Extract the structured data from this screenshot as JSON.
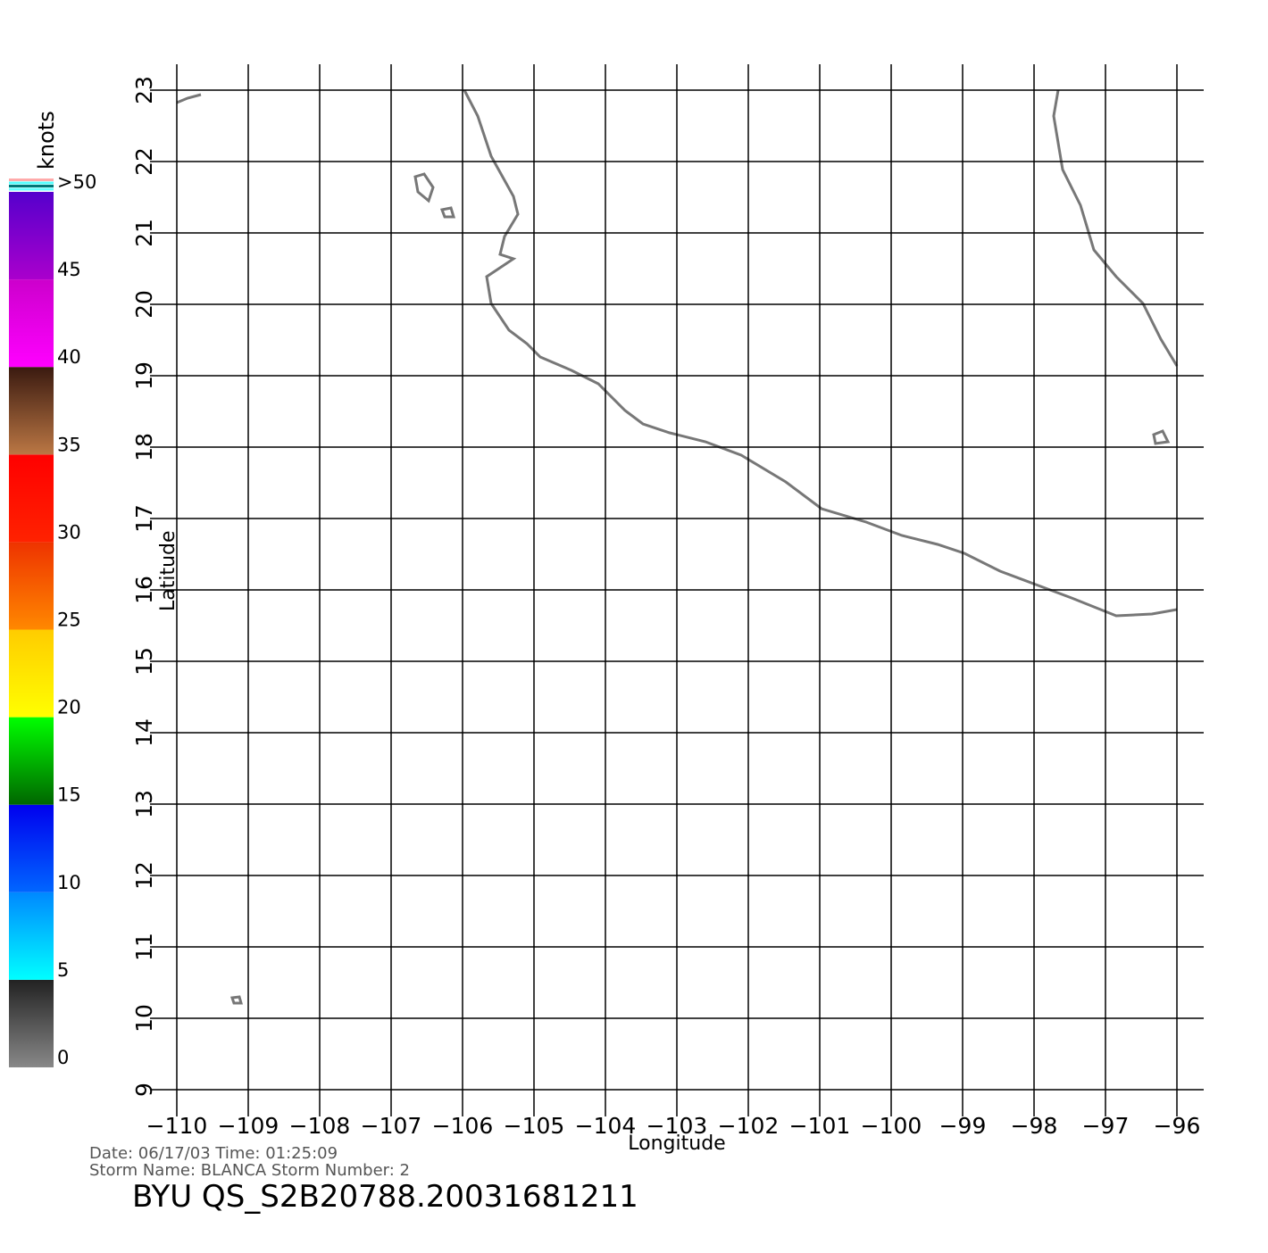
{
  "chart_data": {
    "type": "map",
    "title": "BYU  QS_S2B20788.20031681211",
    "info": [
      "Date:  06/17/03    Time:  01:25:09",
      "Storm  Name:  BLANCA    Storm  Number:  2"
    ],
    "x_label": "Longitude",
    "y_label": "Latitude",
    "xlim": [
      -110,
      -96
    ],
    "ylim": [
      9,
      23
    ],
    "xticks": [
      {
        "value": -110,
        "label": "−110"
      },
      {
        "value": -109,
        "label": "−109"
      },
      {
        "value": -108,
        "label": "−108"
      },
      {
        "value": -107,
        "label": "−107"
      },
      {
        "value": -106,
        "label": "−106"
      },
      {
        "value": -105,
        "label": "−105"
      },
      {
        "value": -104,
        "label": "−104"
      },
      {
        "value": -103,
        "label": "−103"
      },
      {
        "value": -102,
        "label": "−102"
      },
      {
        "value": -101,
        "label": "−101"
      },
      {
        "value": -100,
        "label": "−100"
      },
      {
        "value": -99,
        "label": "−99"
      },
      {
        "value": -98,
        "label": "−98"
      },
      {
        "value": -97,
        "label": "−97"
      },
      {
        "value": -96,
        "label": "−96"
      }
    ],
    "yticks": [
      9,
      10,
      11,
      12,
      13,
      14,
      15,
      16,
      17,
      18,
      19,
      20,
      21,
      22,
      23
    ],
    "grid": true,
    "colorbar": {
      "label": "knots",
      "lim": [
        0,
        50
      ],
      "ticks": [
        0,
        5,
        10,
        15,
        20,
        25,
        30,
        35,
        40,
        45,
        {
          "value": 50,
          "label": ">50"
        }
      ],
      "colors": [
        [
          "#888888",
          "#222222"
        ],
        [
          "#00ffff",
          "#0088ff"
        ],
        [
          "#0066ff",
          "#0000ee"
        ],
        [
          "#006600",
          "#00ff00"
        ],
        [
          "#ffff00",
          "#ffcc00"
        ],
        [
          "#ff8800",
          "#ee3300"
        ],
        [
          "#ff2200",
          "#ff0000"
        ],
        [
          "#bb7744",
          "#3a1a10"
        ],
        [
          "#ff00ff",
          "#cc00cc"
        ],
        [
          "#aa00cc",
          "#5500cc"
        ]
      ]
    }
  }
}
